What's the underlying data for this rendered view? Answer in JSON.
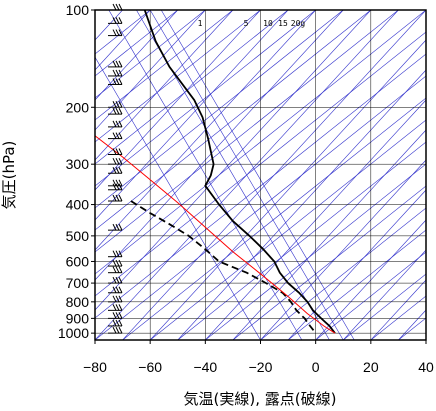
{
  "chart_data": {
    "type": "line",
    "xlabel": "気温(実線), 露点(破線)",
    "ylabel": "気圧(hPa)",
    "xlim": [
      -80,
      40
    ],
    "ylim": [
      1050,
      100
    ],
    "y_scale": "log",
    "x_ticks": [
      -80,
      -60,
      -40,
      -20,
      0,
      20,
      40
    ],
    "x_tick_labels": [
      "−80",
      "−60",
      "−40",
      "−20",
      "0",
      "20",
      "40"
    ],
    "y_ticks": [
      100,
      200,
      300,
      400,
      500,
      600,
      700,
      800,
      900,
      1000
    ],
    "y_tick_labels": [
      "100",
      "200",
      "300",
      "400",
      "500",
      "600",
      "700",
      "800",
      "900",
      "1000"
    ],
    "mixing_ratio_labels": [
      "1",
      "5",
      "10",
      "15",
      "20g"
    ],
    "grid": true,
    "colors": {
      "temperature": "#000000",
      "dewpoint": "#000000",
      "parcel": "#ff0000",
      "isotherm": "#3333cc",
      "dry_adiabat": "#3333cc",
      "mixing_ratio": "#3333cc",
      "grid": "#000000",
      "wind_barb": "#000000"
    },
    "series": [
      {
        "style": "solid",
        "color": "#000000",
        "points": [
          [
            -62,
            100
          ],
          [
            -58,
            125
          ],
          [
            -53,
            150
          ],
          [
            -44,
            190
          ],
          [
            -41,
            215
          ],
          [
            -39,
            250
          ],
          [
            -37,
            300
          ],
          [
            -38,
            325
          ],
          [
            -40,
            350
          ],
          [
            -35,
            400
          ],
          [
            -30,
            450
          ],
          [
            -24,
            500
          ],
          [
            -19,
            550
          ],
          [
            -15,
            600
          ],
          [
            -13,
            650
          ],
          [
            -10,
            700
          ],
          [
            -6,
            750
          ],
          [
            -3,
            800
          ],
          [
            -1,
            850
          ],
          [
            2,
            900
          ],
          [
            5,
            950
          ],
          [
            7,
            1000
          ]
        ]
      },
      {
        "style": "dashed",
        "color": "#000000",
        "points": [
          [
            -67,
            390
          ],
          [
            -60,
            425
          ],
          [
            -53,
            460
          ],
          [
            -46,
            500
          ],
          [
            -40,
            550
          ],
          [
            -35,
            600
          ],
          [
            -25,
            650
          ],
          [
            -18,
            700
          ],
          [
            -12,
            750
          ],
          [
            -9,
            800
          ],
          [
            -7,
            850
          ],
          [
            -4,
            900
          ],
          [
            -2,
            950
          ],
          [
            0,
            1000
          ]
        ]
      },
      {
        "style": "solid",
        "color": "#ff0000",
        "points": [
          [
            -80,
            245
          ],
          [
            -70,
            285
          ],
          [
            -60,
            335
          ],
          [
            -50,
            395
          ],
          [
            -40,
            470
          ],
          [
            -30,
            560
          ],
          [
            -20,
            655
          ],
          [
            -10,
            770
          ],
          [
            -3,
            870
          ],
          [
            3,
            950
          ],
          [
            7,
            1000
          ]
        ]
      }
    ],
    "wind_barb_levels": [
      100,
      110,
      120,
      150,
      160,
      170,
      200,
      210,
      230,
      250,
      280,
      300,
      320,
      350,
      360,
      390,
      480,
      580,
      620,
      650,
      700,
      750,
      800,
      850,
      900,
      950,
      1000
    ]
  }
}
